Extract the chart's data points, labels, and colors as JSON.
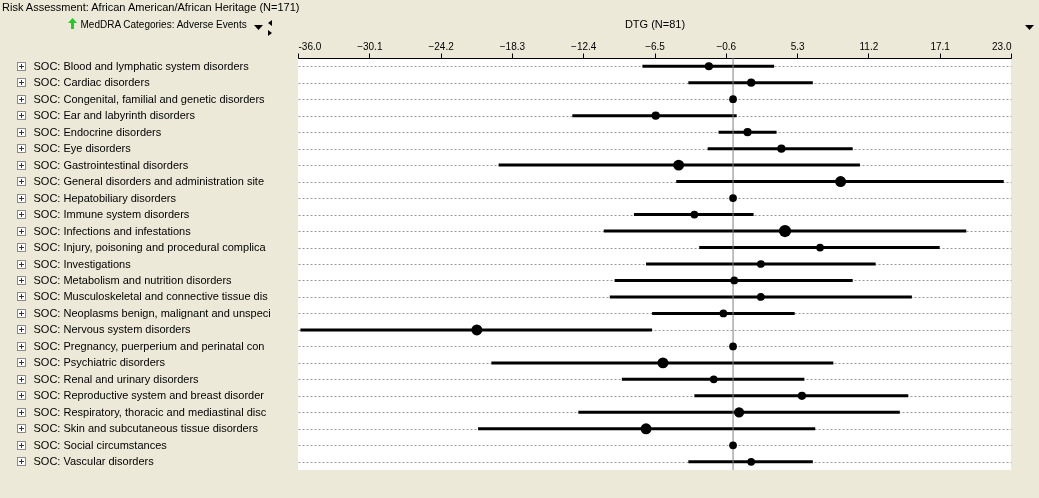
{
  "chart_data": {
    "type": "bubble",
    "orientation": "horizontal",
    "title": "Risk Assessment: African American/African Heritage (N=171)",
    "xlabel": "DTG (N=81)",
    "ylabel": "MedDRA Categories: Adverse Events",
    "categories": [
      "SOC: Blood and lymphatic system disorders",
      "SOC: Cardiac disorders",
      "SOC: Congenital, familial and genetic disorders",
      "SOC: Ear and labyrinth disorders",
      "SOC: Endocrine disorders",
      "SOC: Eye disorders",
      "SOC: Gastrointestinal disorders",
      "SOC: General disorders and administration site",
      "SOC: Hepatobiliary disorders",
      "SOC: Immune system disorders",
      "SOC: Infections and infestations",
      "SOC: Injury, poisoning and procedural complica",
      "SOC: Investigations",
      "SOC: Metabolism and nutrition disorders",
      "SOC: Musculoskeletal and connective tissue dis",
      "SOC: Neoplasms benign, malignant and unspeci",
      "SOC: Nervous system disorders",
      "SOC: Pregnancy, puerperium and perinatal con",
      "SOC: Psychiatric disorders",
      "SOC: Renal and urinary disorders",
      "SOC: Reproductive system and breast disorder",
      "SOC: Respiratory, thoracic and mediastinal disc",
      "SOC: Skin and subcutaneous tissue disorders",
      "SOC: Social circumstances",
      "SOC: Vascular disorders"
    ],
    "values": [
      -2.0,
      1.5,
      0.0,
      -6.4,
      1.2,
      4.0,
      -4.5,
      8.9,
      0.0,
      -3.2,
      4.3,
      7.2,
      2.3,
      0.1,
      2.3,
      -0.8,
      -21.2,
      0.0,
      -5.8,
      -1.6,
      5.7,
      0.5,
      -7.2,
      0.0,
      1.5
    ],
    "errors": [
      [
        -7.5,
        3.4
      ],
      [
        -3.7,
        6.6
      ],
      null,
      [
        -13.3,
        0.3
      ],
      [
        -1.2,
        3.6
      ],
      [
        -2.1,
        9.9
      ],
      [
        -19.4,
        10.5
      ],
      [
        -4.7,
        22.4
      ],
      null,
      [
        -8.2,
        1.7
      ],
      [
        -10.7,
        19.3
      ],
      [
        -2.8,
        17.1
      ],
      [
        -7.2,
        11.8
      ],
      [
        -9.8,
        9.9
      ],
      [
        -10.2,
        14.8
      ],
      [
        -6.7,
        5.1
      ],
      [
        -35.8,
        -6.7
      ],
      null,
      [
        -20.0,
        8.3
      ],
      [
        -9.2,
        5.9
      ],
      [
        -3.2,
        14.5
      ],
      [
        -12.8,
        13.8
      ],
      [
        -21.1,
        6.8
      ],
      null,
      [
        -3.7,
        6.6
      ]
    ],
    "sizes": [
      0.45,
      0.45,
      0.4,
      0.45,
      0.45,
      0.45,
      0.8,
      0.8,
      0.4,
      0.4,
      1,
      0.4,
      0.4,
      0.4,
      0.4,
      0.4,
      0.8,
      0.4,
      0.8,
      0.4,
      0.45,
      0.7,
      0.8,
      0.4,
      0.4
    ],
    "color": "#000000",
    "marker": "circle",
    "xlim": [
      -36.0,
      23.0
    ],
    "xticks": [
      {
        "value": -36.0,
        "label": "-36.0"
      },
      -30.1,
      -24.2,
      -18.3,
      -12.4,
      -6.5,
      -0.6,
      5.3,
      11.2,
      17.1,
      {
        "value": 23.0,
        "label": "23.0"
      }
    ],
    "grid": "y",
    "ref_lines": [
      {
        "axis": "x",
        "value": 0,
        "color": "#808080"
      }
    ]
  }
}
